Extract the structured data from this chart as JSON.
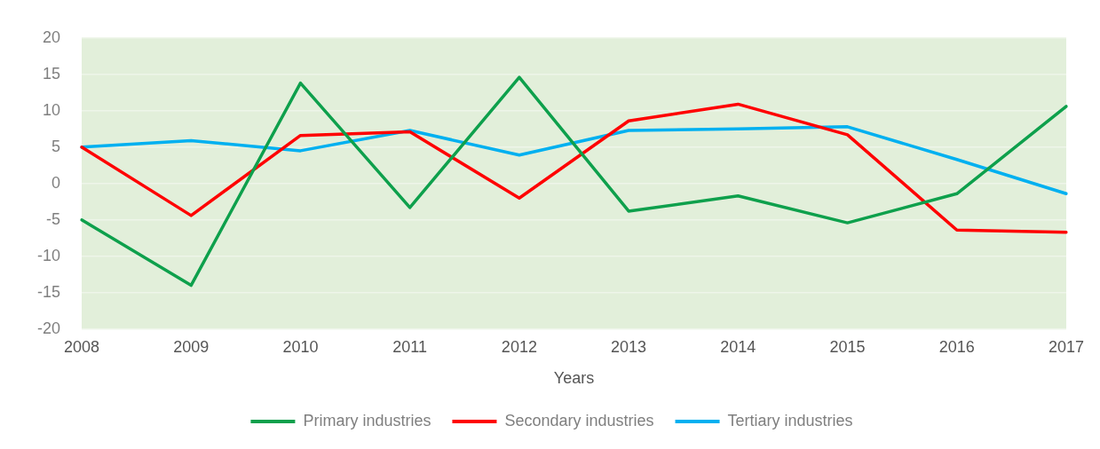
{
  "chart_data": {
    "type": "line",
    "xlabel": "Years",
    "categories": [
      "2008",
      "2009",
      "2010",
      "2011",
      "2012",
      "2013",
      "2014",
      "2015",
      "2016",
      "2017"
    ],
    "series": [
      {
        "name": "Primary industries",
        "color": "#0ea04c",
        "values": [
          -5,
          -14,
          13.8,
          -3.3,
          14.6,
          -3.8,
          -1.7,
          -5.4,
          -1.4,
          10.6
        ]
      },
      {
        "name": "Secondary industries",
        "color": "#ff0000",
        "values": [
          5,
          -4.4,
          6.6,
          7.1,
          -2,
          8.6,
          10.9,
          6.7,
          -6.4,
          -6.7
        ]
      },
      {
        "name": "Tertiary industries",
        "color": "#00b0f0",
        "values": [
          5,
          5.9,
          4.5,
          7.3,
          3.9,
          7.3,
          7.5,
          7.8,
          3.3,
          -1.4
        ]
      }
    ],
    "ylim": [
      -20,
      20
    ],
    "yticks": [
      -20,
      -15,
      -10,
      -5,
      0,
      5,
      10,
      15,
      20
    ],
    "grid": "y",
    "legend": "bottom",
    "marker": "none",
    "line_style": "solid"
  }
}
